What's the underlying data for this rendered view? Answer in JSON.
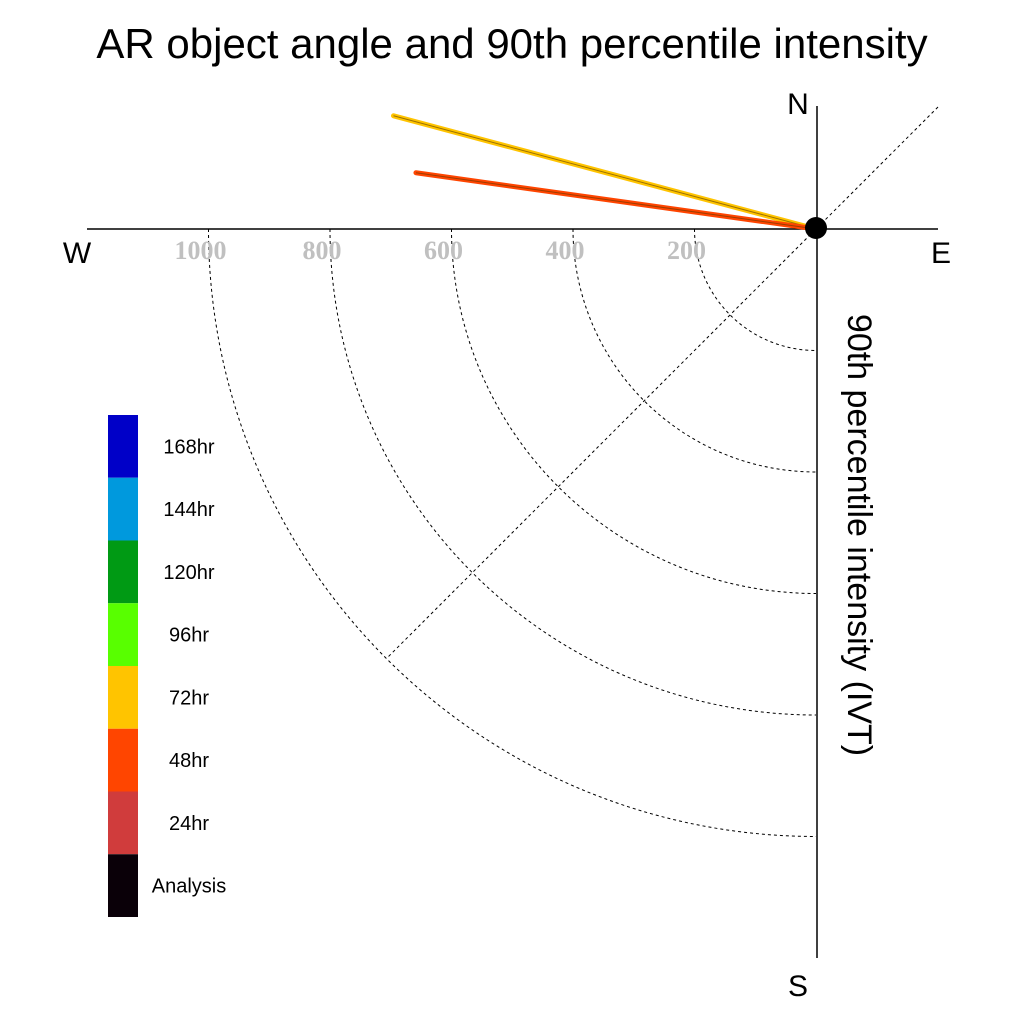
{
  "chart_data": {
    "type": "polar-vector",
    "title": "AR object angle and 90th percentile intensity",
    "ylabel": "90th percentile intensity (IVT)",
    "compass": {
      "north": "N",
      "south": "S",
      "east": "E",
      "west": "W"
    },
    "radial_ticks": [
      200,
      400,
      600,
      800,
      1000
    ],
    "radial_tick_labels": [
      "200",
      "400",
      "600",
      "800",
      "1000"
    ],
    "radius_max": 1200,
    "grid": true,
    "legend_position": "left",
    "series": [
      {
        "name": "72hr",
        "direction_deg": 285,
        "intensity": 720,
        "color": "#FFC400"
      },
      {
        "name": "48hr",
        "direction_deg": 278,
        "intensity": 665,
        "color": "#FF4500"
      }
    ],
    "analysis_marker_color": "#000000",
    "legend": [
      {
        "label": "168hr",
        "color": "#0000C8"
      },
      {
        "label": "144hr",
        "color": "#0099DD"
      },
      {
        "label": "120hr",
        "color": "#009A14"
      },
      {
        "label": "96hr",
        "color": "#58FF00"
      },
      {
        "label": "72hr",
        "color": "#FFC400"
      },
      {
        "label": "48hr",
        "color": "#FF4500"
      },
      {
        "label": "24hr",
        "color": "#D03C3C"
      },
      {
        "label": "Analysis",
        "color": "#0A0008"
      }
    ]
  }
}
